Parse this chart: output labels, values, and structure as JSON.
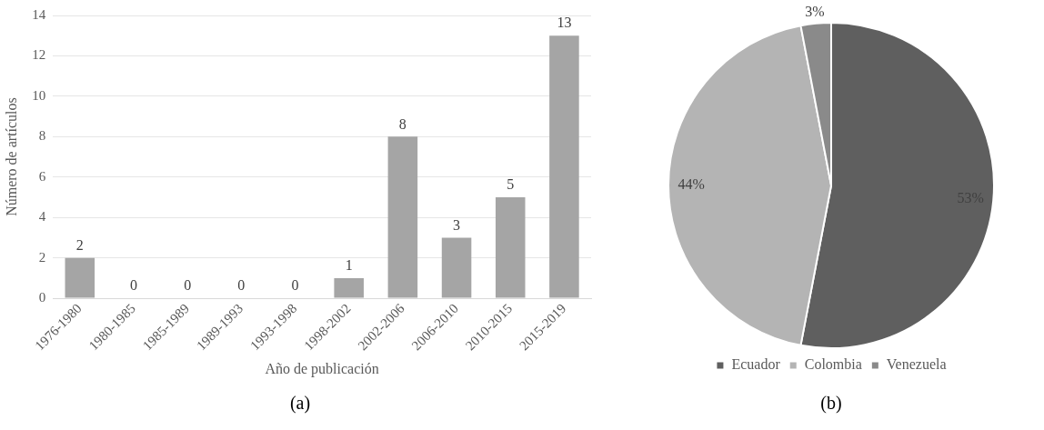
{
  "chart_data": [
    {
      "type": "bar",
      "xlabel": "Año de publicación",
      "ylabel": "Número de artículos",
      "categories": [
        "1976-1980",
        "1980-1985",
        "1985-1989",
        "1989-1993",
        "1993-1998",
        "1998-2002",
        "2002-2006",
        "2006-2010",
        "2010-2015",
        "2015-2019"
      ],
      "values": [
        2,
        0,
        0,
        0,
        0,
        1,
        8,
        3,
        5,
        13
      ],
      "color": "#a5a5a5",
      "ylim": [
        0,
        14
      ],
      "yticks": [
        0,
        2,
        4,
        6,
        8,
        10,
        12,
        14
      ],
      "grid": "y",
      "data_labels": true,
      "legend": false,
      "annotations": [
        "(a)"
      ]
    },
    {
      "type": "pie",
      "categories": [
        "Ecuador",
        "Colombia",
        "Venezuela"
      ],
      "values": [
        53,
        44,
        3
      ],
      "colors": [
        "#5f5f5f",
        "#b4b4b4",
        "#8a8a8a"
      ],
      "value_labels": [
        "53%",
        "44%",
        "3%"
      ],
      "legend": "bottom",
      "annotations": [
        "(b)"
      ]
    }
  ]
}
